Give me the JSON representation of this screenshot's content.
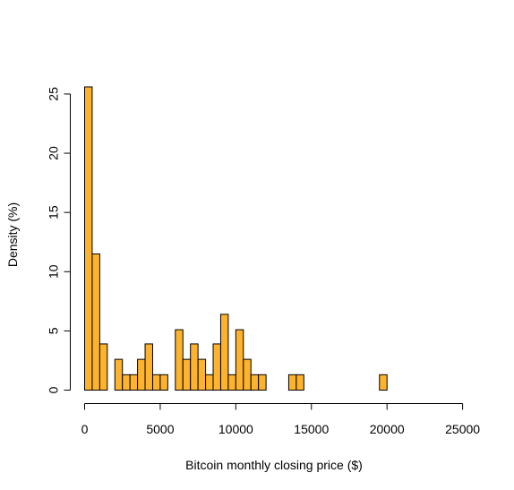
{
  "chart_data": {
    "type": "bar",
    "title": "",
    "xlabel": "Bitcoin monthly closing price ($)",
    "ylabel": "Density (%)",
    "bin_width": 500,
    "xlim": [
      0,
      26000
    ],
    "ylim": [
      0,
      25.6
    ],
    "x_ticks": [
      0,
      5000,
      10000,
      15000,
      20000,
      25000
    ],
    "y_ticks": [
      0,
      5,
      10,
      15,
      20,
      25
    ],
    "bar_color": "#FDB32D",
    "edge_color": "#000000",
    "bins": [
      {
        "x0": 0,
        "x1": 500,
        "value": 25.6
      },
      {
        "x0": 500,
        "x1": 1000,
        "value": 11.5
      },
      {
        "x0": 1000,
        "x1": 1500,
        "value": 3.9
      },
      {
        "x0": 1500,
        "x1": 2000,
        "value": 0
      },
      {
        "x0": 2000,
        "x1": 2500,
        "value": 2.6
      },
      {
        "x0": 2500,
        "x1": 3000,
        "value": 1.3
      },
      {
        "x0": 3000,
        "x1": 3500,
        "value": 1.3
      },
      {
        "x0": 3500,
        "x1": 4000,
        "value": 2.6
      },
      {
        "x0": 4000,
        "x1": 4500,
        "value": 3.9
      },
      {
        "x0": 4500,
        "x1": 5000,
        "value": 1.3
      },
      {
        "x0": 5000,
        "x1": 5500,
        "value": 1.3
      },
      {
        "x0": 5500,
        "x1": 6000,
        "value": 0
      },
      {
        "x0": 6000,
        "x1": 6500,
        "value": 5.1
      },
      {
        "x0": 6500,
        "x1": 7000,
        "value": 2.6
      },
      {
        "x0": 7000,
        "x1": 7500,
        "value": 3.9
      },
      {
        "x0": 7500,
        "x1": 8000,
        "value": 2.6
      },
      {
        "x0": 8000,
        "x1": 8500,
        "value": 1.3
      },
      {
        "x0": 8500,
        "x1": 9000,
        "value": 3.9
      },
      {
        "x0": 9000,
        "x1": 9500,
        "value": 6.4
      },
      {
        "x0": 9500,
        "x1": 10000,
        "value": 1.3
      },
      {
        "x0": 10000,
        "x1": 10500,
        "value": 5.1
      },
      {
        "x0": 10500,
        "x1": 11000,
        "value": 2.6
      },
      {
        "x0": 11000,
        "x1": 11500,
        "value": 1.3
      },
      {
        "x0": 11500,
        "x1": 12000,
        "value": 1.3
      },
      {
        "x0": 13500,
        "x1": 14000,
        "value": 1.3
      },
      {
        "x0": 14000,
        "x1": 14500,
        "value": 1.3
      },
      {
        "x0": 19500,
        "x1": 20000,
        "value": 1.3
      }
    ]
  }
}
